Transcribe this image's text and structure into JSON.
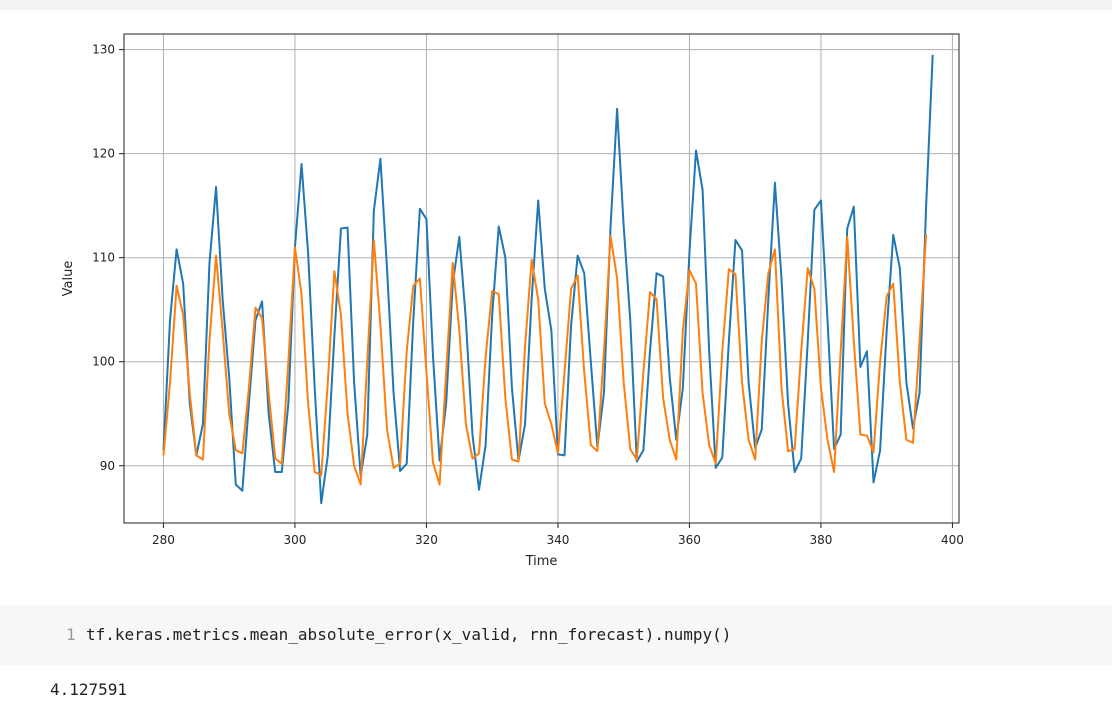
{
  "chart_data": {
    "type": "line",
    "xlabel": "Time",
    "ylabel": "Value",
    "xlim": [
      274,
      401
    ],
    "ylim": [
      84.5,
      131.5
    ],
    "x_ticks": [
      280,
      300,
      320,
      340,
      360,
      380,
      400
    ],
    "y_ticks": [
      90,
      100,
      110,
      120,
      130
    ],
    "grid": true,
    "series": [
      {
        "color": "#1f77b4",
        "x_start": 280,
        "values": [
          91.5,
          104,
          110.8,
          107.5,
          96,
          91,
          94,
          109.5,
          116.8,
          106,
          98.5,
          88.2,
          87.6,
          96,
          104,
          105.8,
          95,
          89.4,
          89.4,
          96,
          111,
          119,
          110.5,
          97.5,
          86.4,
          91,
          102.5,
          112.8,
          112.9,
          98,
          89,
          93,
          114.5,
          119.5,
          109,
          97,
          89.5,
          90.2,
          104,
          114.7,
          113.7,
          100.5,
          90.5,
          96,
          107.5,
          112,
          104,
          93,
          87.7,
          92,
          104.5,
          113,
          110,
          97.5,
          90.5,
          94,
          106,
          115.5,
          107,
          103,
          91.1,
          91,
          103.5,
          110.2,
          108.5,
          100,
          91.8,
          97,
          113,
          124.3,
          113,
          104,
          90.4,
          91.5,
          101,
          108.5,
          108.2,
          98.5,
          92.5,
          97.5,
          110.5,
          120.3,
          116.5,
          101,
          89.8,
          90.8,
          102,
          111.7,
          110.7,
          98,
          91.7,
          93.5,
          106,
          117.2,
          108,
          96,
          89.4,
          90.7,
          102,
          114.6,
          115.5,
          104,
          91.6,
          93,
          112.8,
          114.9,
          99.5,
          101,
          88.4,
          91.5,
          103,
          112.2,
          109,
          98,
          93.6,
          97,
          115,
          129.5
        ]
      },
      {
        "color": "#ff7f0e",
        "x_start": 280,
        "values": [
          91,
          98,
          107.3,
          104.5,
          97,
          91,
          90.6,
          102,
          110.2,
          103,
          95,
          91.5,
          91.2,
          97.5,
          105.2,
          104.2,
          97,
          90.7,
          90.2,
          100,
          111,
          106.5,
          96,
          89.4,
          89.1,
          98,
          108.7,
          104.5,
          95,
          90,
          88.2,
          100,
          111.7,
          103.5,
          93.5,
          89.8,
          90.2,
          101,
          107.3,
          108,
          99,
          90.3,
          88.2,
          99,
          109.5,
          103,
          94,
          90.7,
          91.2,
          100.5,
          106.8,
          106.5,
          96.5,
          90.6,
          90.4,
          101.5,
          109.8,
          106,
          96,
          94,
          91.2,
          99,
          107,
          108.3,
          99,
          92,
          91.4,
          101,
          112.1,
          108,
          98,
          91.6,
          90.6,
          99,
          106.7,
          106,
          96.5,
          92.5,
          90.6,
          103,
          108.8,
          107.5,
          97,
          92,
          90.2,
          101,
          108.9,
          108.4,
          98,
          92.5,
          90.6,
          102,
          108.5,
          110.8,
          97.5,
          91.4,
          91.6,
          101,
          109,
          107,
          97.5,
          92.5,
          89.4,
          101,
          112,
          102,
          93,
          92.9,
          91.3,
          100,
          106.3,
          107.5,
          98,
          92.5,
          92.2,
          102,
          112.3
        ]
      }
    ]
  },
  "code_cell": {
    "line_number": "1",
    "code": "tf.keras.metrics.mean_absolute_error(x_valid, rnn_forecast).numpy()"
  },
  "output": {
    "result": "4.127591"
  }
}
